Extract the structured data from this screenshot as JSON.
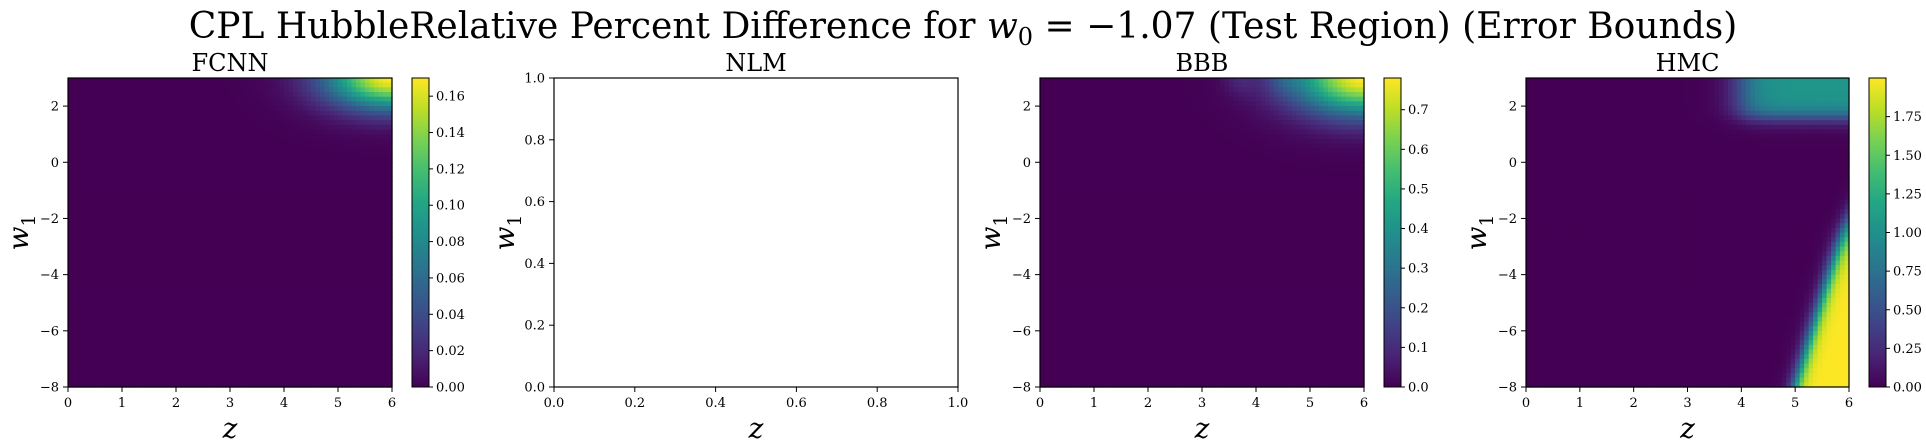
{
  "figure": {
    "title_main": "CPL HubbleRelative Percent Difference for ",
    "title_var": "w",
    "title_sub": "0",
    "title_rest": " = −1.07 (Test Region) (Error Bounds)"
  },
  "chart_data": [
    {
      "type": "heatmap",
      "title": "FCNN",
      "xlabel": "z",
      "ylabel_var": "w",
      "ylabel_sub": "1",
      "xlim": [
        0,
        6
      ],
      "ylim": [
        -8,
        3
      ],
      "x_ticks": [
        "0",
        "1",
        "2",
        "3",
        "4",
        "5",
        "6"
      ],
      "x_tick_values": [
        0,
        1,
        2,
        3,
        4,
        5,
        6
      ],
      "y_ticks": [
        "−8",
        "−6",
        "−4",
        "−2",
        "0",
        "2"
      ],
      "y_tick_values": [
        -8,
        -6,
        -4,
        -2,
        0,
        2
      ],
      "colormap": "viridis",
      "colorbar": {
        "range": [
          0,
          0.17
        ],
        "ticks": [
          "0.00",
          "0.02",
          "0.04",
          "0.06",
          "0.08",
          "0.10",
          "0.12",
          "0.14",
          "0.16"
        ],
        "tick_values": [
          0,
          0.02,
          0.04,
          0.06,
          0.08,
          0.1,
          0.12,
          0.14,
          0.16
        ]
      },
      "hotspots": [
        {
          "region": "top-right",
          "z_center": 6.0,
          "w1_center": 3.0,
          "z_width": 1.2,
          "w1_width": 1.1,
          "peak": 0.17
        }
      ]
    },
    {
      "type": "heatmap",
      "title": "NLM",
      "xlabel": "z",
      "ylabel_var": "w",
      "ylabel_sub": "1",
      "xlim": [
        0,
        1
      ],
      "ylim": [
        0,
        1
      ],
      "x_ticks": [
        "0.0",
        "0.2",
        "0.4",
        "0.6",
        "0.8",
        "1.0"
      ],
      "x_tick_values": [
        0,
        0.2,
        0.4,
        0.6,
        0.8,
        1.0
      ],
      "y_ticks": [
        "0.0",
        "0.2",
        "0.4",
        "0.6",
        "0.8",
        "1.0"
      ],
      "y_tick_values": [
        0,
        0.2,
        0.4,
        0.6,
        0.8,
        1.0
      ],
      "empty": true
    },
    {
      "type": "heatmap",
      "title": "BBB",
      "xlabel": "z",
      "ylabel_var": "w",
      "ylabel_sub": "1",
      "xlim": [
        0,
        6
      ],
      "ylim": [
        -8,
        3
      ],
      "x_ticks": [
        "0",
        "1",
        "2",
        "3",
        "4",
        "5",
        "6"
      ],
      "x_tick_values": [
        0,
        1,
        2,
        3,
        4,
        5,
        6
      ],
      "y_ticks": [
        "−8",
        "−6",
        "−4",
        "−2",
        "0",
        "2"
      ],
      "y_tick_values": [
        -8,
        -6,
        -4,
        -2,
        0,
        2
      ],
      "colormap": "viridis",
      "colorbar": {
        "range": [
          0,
          0.78
        ],
        "ticks": [
          "0.0",
          "0.1",
          "0.2",
          "0.3",
          "0.4",
          "0.5",
          "0.6",
          "0.7"
        ],
        "tick_values": [
          0,
          0.1,
          0.2,
          0.3,
          0.4,
          0.5,
          0.6,
          0.7
        ]
      },
      "hotspots": [
        {
          "region": "top-right",
          "z_center": 6.0,
          "w1_center": 3.0,
          "z_width": 1.3,
          "w1_width": 1.3,
          "peak": 0.78
        },
        {
          "region": "top-center",
          "z_center": 3.7,
          "w1_center": 3.0,
          "z_width": 0.3,
          "w1_width": 0.6,
          "peak": 0.06
        },
        {
          "region": "top-center",
          "z_center": 4.5,
          "w1_center": 3.0,
          "z_width": 0.3,
          "w1_width": 0.6,
          "peak": 0.06
        }
      ]
    },
    {
      "type": "heatmap",
      "title": "HMC",
      "xlabel": "z",
      "ylabel_var": "w",
      "ylabel_sub": "1",
      "xlim": [
        0,
        6
      ],
      "ylim": [
        -8,
        3
      ],
      "x_ticks": [
        "0",
        "1",
        "2",
        "3",
        "4",
        "5",
        "6"
      ],
      "x_tick_values": [
        0,
        1,
        2,
        3,
        4,
        5,
        6
      ],
      "y_ticks": [
        "−8",
        "−6",
        "−4",
        "−2",
        "0",
        "2"
      ],
      "y_tick_values": [
        -8,
        -6,
        -4,
        -2,
        0,
        2
      ],
      "colormap": "viridis",
      "colorbar": {
        "range": [
          0,
          2.0
        ],
        "ticks": [
          "0.00",
          "0.25",
          "0.50",
          "0.75",
          "1.00",
          "1.25",
          "1.50",
          "1.75"
        ],
        "tick_values": [
          0,
          0.25,
          0.5,
          0.75,
          1.0,
          1.25,
          1.5,
          1.75
        ]
      },
      "hotspots": [
        {
          "region": "top-band",
          "z_from": 4.0,
          "w1_from": 1.6,
          "peak": 1.05
        },
        {
          "region": "bottom-right",
          "z_from": 5.0,
          "w1_to": -2.0,
          "peak": 2.0
        }
      ]
    }
  ]
}
